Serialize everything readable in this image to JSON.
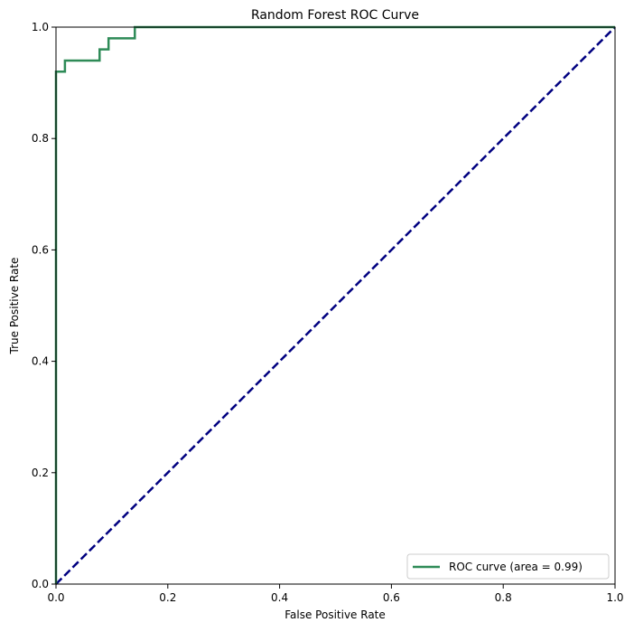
{
  "chart_data": {
    "type": "line",
    "title": "Random Forest ROC Curve",
    "xlabel": "False Positive Rate",
    "ylabel": "True Positive Rate",
    "xlim": [
      0.0,
      1.0
    ],
    "ylim": [
      0.0,
      1.0
    ],
    "xticks": [
      "0.0",
      "0.2",
      "0.4",
      "0.6",
      "0.8",
      "1.0"
    ],
    "yticks": [
      "0.0",
      "0.2",
      "0.4",
      "0.6",
      "0.8",
      "1.0"
    ],
    "grid": false,
    "legend_position": "lower-right",
    "series": [
      {
        "name": "ROC curve (area = 0.99)",
        "color": "#2e8b57",
        "style": "solid-step",
        "x": [
          0.0,
          0.0,
          0.016,
          0.016,
          0.078,
          0.078,
          0.094,
          0.094,
          0.141,
          0.141,
          1.0
        ],
        "y": [
          0.0,
          0.92,
          0.92,
          0.94,
          0.94,
          0.96,
          0.96,
          0.98,
          0.98,
          1.0,
          1.0
        ]
      },
      {
        "name": "",
        "color": "#000080",
        "style": "dashed",
        "x": [
          0.0,
          1.0
        ],
        "y": [
          0.0,
          1.0
        ]
      }
    ]
  }
}
